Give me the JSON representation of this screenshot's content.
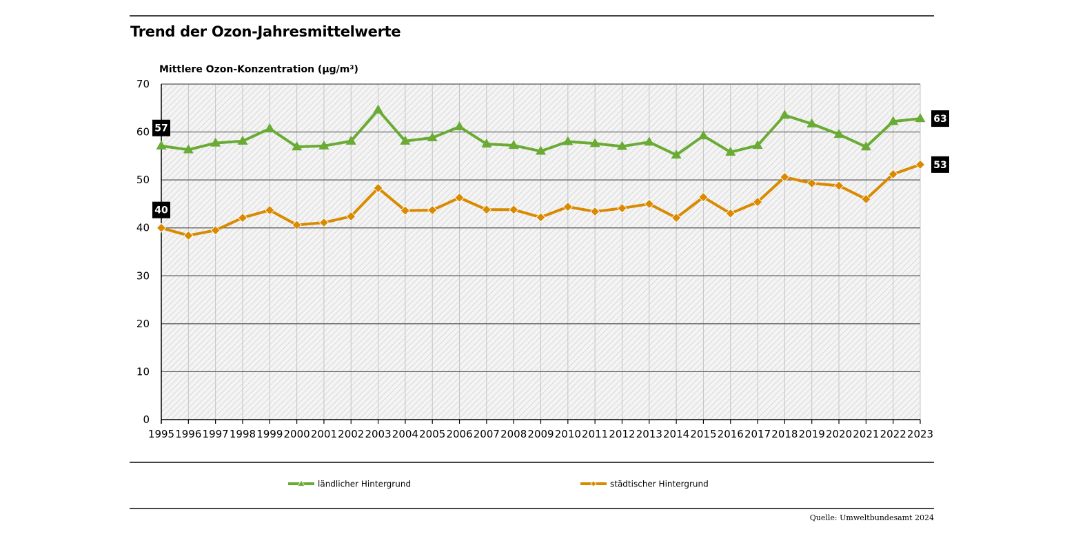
{
  "title": "Trend der Ozon-Jahresmittelwerte",
  "source": "Quelle: Umweltbundesamt 2024",
  "colors": {
    "rural": "#6aab35",
    "urban": "#d98a00",
    "grid": "#555555",
    "badge": "#000000"
  },
  "chart_data": {
    "type": "line",
    "title": "Trend der Ozon-Jahresmittelwerte",
    "ylabel": "Mittlere Ozon-Konzentration (µg/m³)",
    "xlabel": "",
    "ylim": [
      0,
      70
    ],
    "yticks": [
      0,
      10,
      20,
      30,
      40,
      50,
      60,
      70
    ],
    "grid": true,
    "legend_position": "bottom",
    "categories": [
      "1995",
      "1996",
      "1997",
      "1998",
      "1999",
      "2000",
      "2001",
      "2002",
      "2003",
      "2004",
      "2005",
      "2006",
      "2007",
      "2008",
      "2009",
      "2010",
      "2011",
      "2012",
      "2013",
      "2014",
      "2015",
      "2016",
      "2017",
      "2018",
      "2019",
      "2020",
      "2021",
      "2022",
      "2023"
    ],
    "series": [
      {
        "name": "ländlicher Hintergrund",
        "marker": "triangle",
        "color": "#6aab35",
        "values": [
          57.1,
          56.3,
          57.7,
          58.1,
          60.7,
          56.9,
          57.1,
          58.1,
          64.6,
          58.1,
          58.8,
          61.1,
          57.5,
          57.2,
          56.0,
          58.0,
          57.6,
          57.0,
          57.9,
          55.2,
          59.2,
          55.8,
          57.2,
          63.5,
          61.7,
          59.5,
          56.9,
          62.2,
          62.8
        ],
        "start_label": "57",
        "end_label": "63"
      },
      {
        "name": "städtischer Hintergrund",
        "marker": "diamond",
        "color": "#d98a00",
        "values": [
          40.0,
          38.4,
          39.5,
          42.1,
          43.7,
          40.6,
          41.1,
          42.4,
          48.3,
          43.6,
          43.7,
          46.3,
          43.8,
          43.8,
          42.2,
          44.4,
          43.4,
          44.1,
          45.0,
          42.1,
          46.4,
          43.0,
          45.4,
          50.6,
          49.3,
          48.8,
          46.0,
          51.2,
          53.2
        ],
        "start_label": "40",
        "end_label": "53"
      }
    ]
  }
}
